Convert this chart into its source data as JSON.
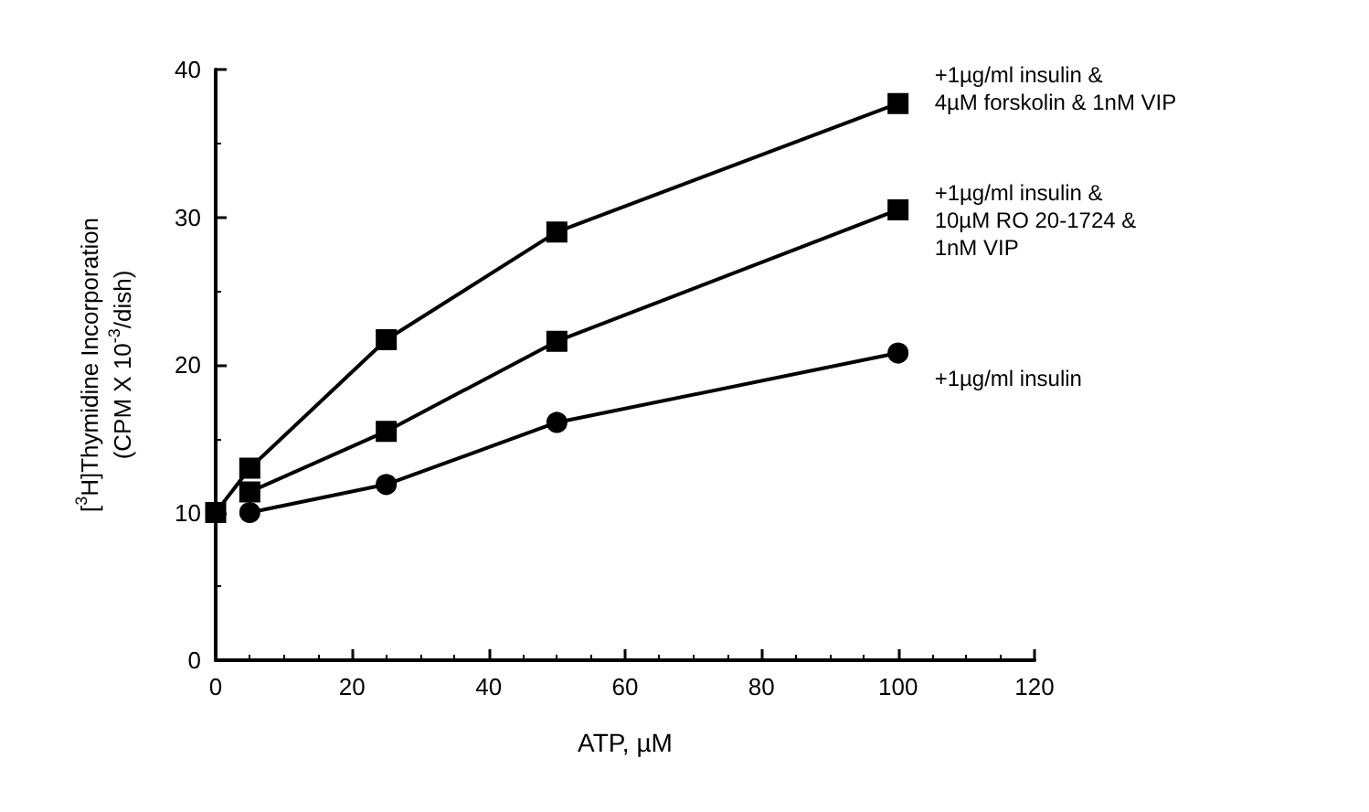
{
  "chart_data": {
    "type": "line",
    "xlabel": "ATP, µM",
    "ylabel": "[$^{3}$H]Thymidine Incorporation\n(CPM X 10$^{-3}$/dish)",
    "x": [
      0,
      5,
      25,
      50,
      100
    ],
    "xlim": [
      0,
      120
    ],
    "xticks": [
      0,
      20,
      40,
      60,
      80,
      100,
      120
    ],
    "ylim": [
      0,
      40
    ],
    "yticks": [
      0,
      10,
      20,
      30,
      40
    ],
    "grid": false,
    "legend": false,
    "line_style": "solid",
    "series": [
      {
        "name": "+1µg/ml insulin &\n4µM forskolin & 1nM VIP",
        "color": "#000000",
        "marker": "square",
        "values": [
          10,
          13.0,
          21.7,
          29.0,
          37.7
        ]
      },
      {
        "name": "+1µg/ml insulin &\n10µM RO 20-1724 &\n1nM VIP",
        "color": "#000000",
        "marker": "square",
        "values": [
          null,
          11.4,
          15.5,
          21.6,
          30.5
        ]
      },
      {
        "name": "+1µg/ml insulin",
        "color": "#000000",
        "marker": "circle",
        "values": [
          null,
          10.0,
          11.9,
          16.1,
          20.8
        ]
      }
    ]
  }
}
